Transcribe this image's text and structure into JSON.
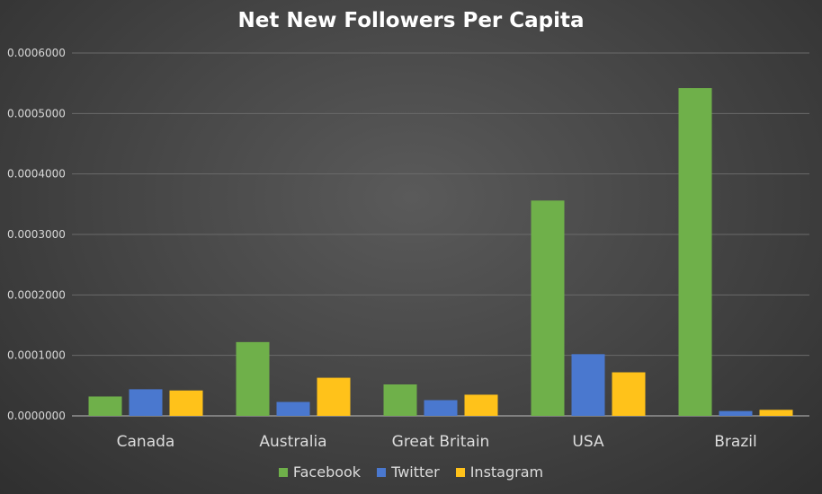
{
  "chart_data": {
    "type": "bar",
    "title": "Net New Followers Per Capita",
    "xlabel": "",
    "ylabel": "",
    "categories": [
      "Canada",
      "Australia",
      "Great Britain",
      "USA",
      "Brazil"
    ],
    "series": [
      {
        "name": "Facebook",
        "color": "#6fb04a",
        "values": [
          3.2e-05,
          0.000122,
          5.2e-05,
          0.000356,
          0.000542
        ]
      },
      {
        "name": "Twitter",
        "color": "#4a78cf",
        "values": [
          4.4e-05,
          2.3e-05,
          2.6e-05,
          0.000102,
          8e-06
        ]
      },
      {
        "name": "Instagram",
        "color": "#ffc21a",
        "values": [
          4.2e-05,
          6.3e-05,
          3.5e-05,
          7.2e-05,
          1e-05
        ]
      }
    ],
    "ylim": [
      0,
      0.0006
    ],
    "yticks": [
      "0.0000000",
      "0.0001000",
      "0.0002000",
      "0.0003000",
      "0.0004000",
      "0.0005000",
      "0.0006000"
    ],
    "grid": true,
    "legend_position": "bottom"
  }
}
